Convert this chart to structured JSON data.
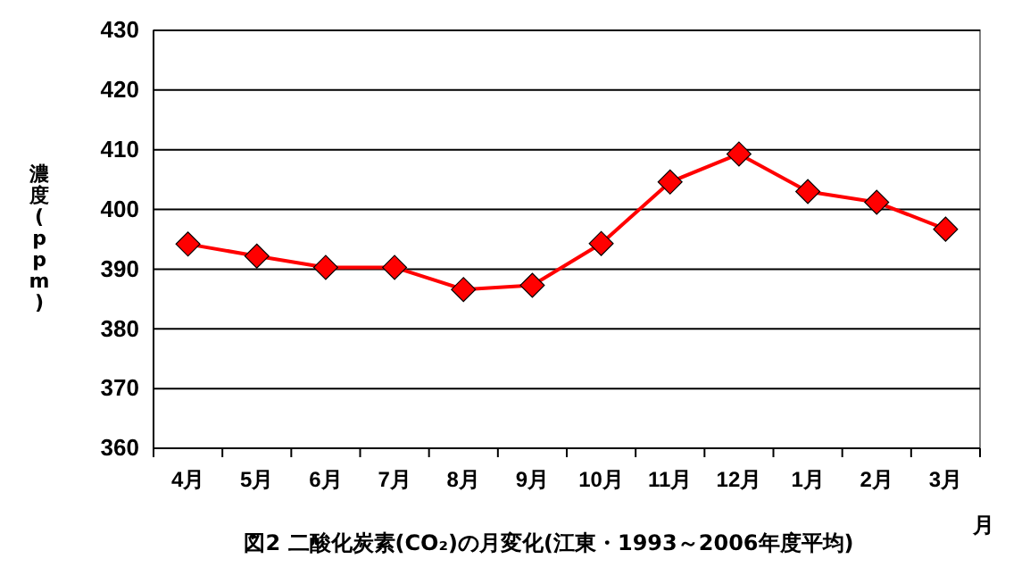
{
  "chart_data": {
    "type": "line",
    "title": "図2 二酸化炭素(CO₂)の月変化(江東・1993～2006年度平均)",
    "xlabel": "月",
    "ylabel": "濃度(ppm)",
    "categories": [
      "4月",
      "5月",
      "6月",
      "7月",
      "8月",
      "9月",
      "10月",
      "11月",
      "12月",
      "1月",
      "2月",
      "3月"
    ],
    "series": [
      {
        "color": "#ff0000",
        "values": [
          394.2,
          392.2,
          390.3,
          390.3,
          386.6,
          387.3,
          394.3,
          404.6,
          409.3,
          403,
          401.2,
          396.7
        ]
      }
    ],
    "ylim": [
      360,
      430
    ],
    "yticks": [
      360,
      370,
      380,
      390,
      400,
      410,
      420,
      430
    ],
    "grid": "y",
    "marker": "diamond",
    "line_style": "solid"
  }
}
